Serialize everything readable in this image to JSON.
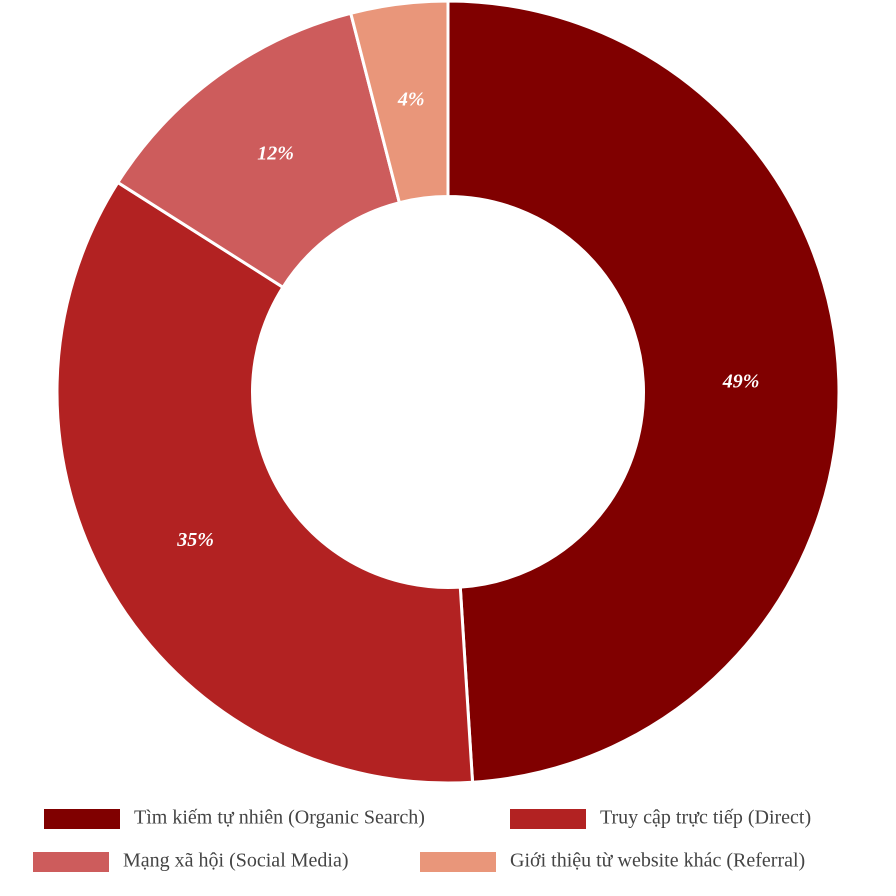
{
  "chart_data": {
    "type": "pie",
    "title": "",
    "hole": 0.5,
    "categories": [
      "Tìm kiếm tự nhiên (Organic Search)",
      "Truy cập trực tiếp (Direct)",
      "Mạng xã hội (Social Media)",
      "Giới thiệu từ website khác (Referral)"
    ],
    "values": [
      49,
      35,
      12,
      4
    ],
    "labels": [
      "49%",
      "35%",
      "12%",
      "4%"
    ],
    "colors": [
      "#800000",
      "#b22222",
      "#cd5c5c",
      "#e9967a"
    ],
    "legend": "bottom"
  }
}
